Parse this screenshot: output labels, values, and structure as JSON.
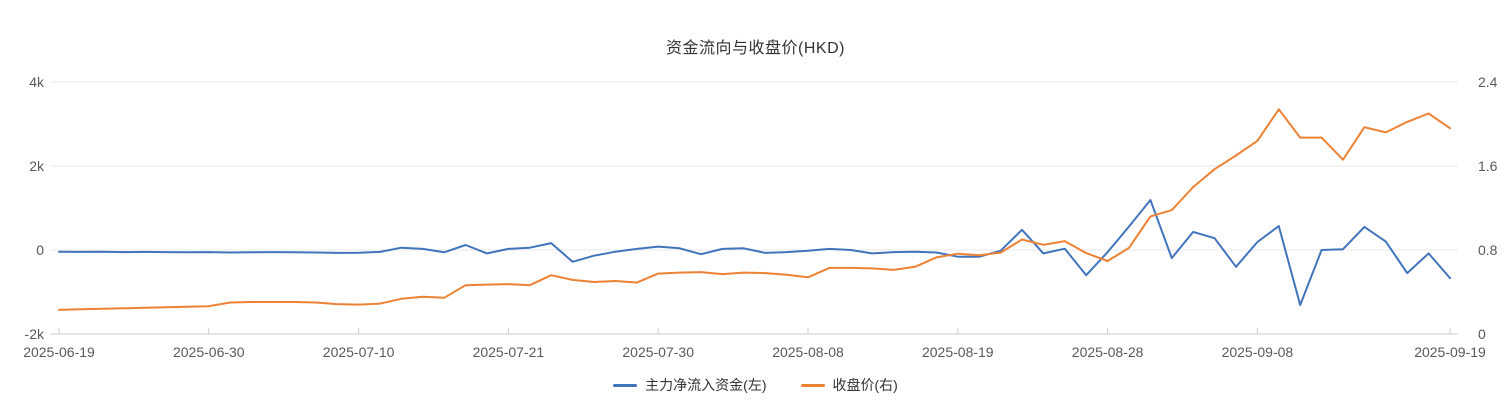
{
  "title": "资金流向与收盘价(HKD)",
  "legend": [
    {
      "label": "主力净流入资金(左)",
      "color": "#4274bd"
    },
    {
      "label": "收盘价(右)",
      "color": "#ee8234"
    }
  ],
  "colors": {
    "netflow_line": "#4274bd",
    "close_line": "#ee8234",
    "gridline": "#e8e8e8",
    "axis_line": "#cccccc",
    "axis_text": "#595959",
    "title_text": "#333333"
  },
  "chart_data": {
    "type": "line",
    "title": "资金流向与收盘价(HKD)",
    "grid": true,
    "legend_position": "bottom",
    "x": [
      "2025-06-19",
      "2025-06-20",
      "2025-06-23",
      "2025-06-24",
      "2025-06-25",
      "2025-06-26",
      "2025-06-27",
      "2025-06-30",
      "2025-07-02",
      "2025-07-03",
      "2025-07-04",
      "2025-07-07",
      "2025-07-08",
      "2025-07-09",
      "2025-07-10",
      "2025-07-11",
      "2025-07-14",
      "2025-07-15",
      "2025-07-16",
      "2025-07-17",
      "2025-07-18",
      "2025-07-21",
      "2025-07-22",
      "2025-07-23",
      "2025-07-24",
      "2025-07-25",
      "2025-07-28",
      "2025-07-29",
      "2025-07-30",
      "2025-07-31",
      "2025-08-01",
      "2025-08-04",
      "2025-08-05",
      "2025-08-06",
      "2025-08-07",
      "2025-08-08",
      "2025-08-11",
      "2025-08-12",
      "2025-08-13",
      "2025-08-14",
      "2025-08-15",
      "2025-08-18",
      "2025-08-19",
      "2025-08-20",
      "2025-08-21",
      "2025-08-22",
      "2025-08-25",
      "2025-08-26",
      "2025-08-27",
      "2025-08-28",
      "2025-08-29",
      "2025-09-01",
      "2025-09-02",
      "2025-09-03",
      "2025-09-04",
      "2025-09-05",
      "2025-09-08",
      "2025-09-09",
      "2025-09-10",
      "2025-09-11",
      "2025-09-12",
      "2025-09-15",
      "2025-09-16",
      "2025-09-17",
      "2025-09-18",
      "2025-09-19"
    ],
    "x_ticks": [
      {
        "label": "2025-06-19",
        "index": 0
      },
      {
        "label": "2025-06-30",
        "index": 7
      },
      {
        "label": "2025-07-10",
        "index": 14
      },
      {
        "label": "2025-07-21",
        "index": 21
      },
      {
        "label": "2025-07-30",
        "index": 28
      },
      {
        "label": "2025-08-08",
        "index": 35
      },
      {
        "label": "2025-08-19",
        "index": 42
      },
      {
        "label": "2025-08-28",
        "index": 49
      },
      {
        "label": "2025-09-08",
        "index": 56
      },
      {
        "label": "2025-09-19",
        "index": 65
      }
    ],
    "left_axis": {
      "min": -2000,
      "max": 4000,
      "ticks": [
        {
          "label": "4k",
          "value": 4000
        },
        {
          "label": "2k",
          "value": 2000
        },
        {
          "label": "0",
          "value": 0
        },
        {
          "label": "-2k",
          "value": -2000
        }
      ]
    },
    "right_axis": {
      "min": 0,
      "max": 2.4,
      "ticks": [
        {
          "label": "2.4",
          "value": 2.4
        },
        {
          "label": "1.6",
          "value": 1.6
        },
        {
          "label": "0.8",
          "value": 0.8
        },
        {
          "label": "0",
          "value": 0
        }
      ]
    },
    "series": [
      {
        "name": "主力净流入资金(左)",
        "axis": "left",
        "color": "#4274bd",
        "values": [
          -40,
          -45,
          -40,
          -50,
          -45,
          -50,
          -55,
          -50,
          -60,
          -55,
          -50,
          -55,
          -60,
          -70,
          -65,
          -45,
          55,
          25,
          -55,
          120,
          -80,
          25,
          55,
          165,
          -280,
          -135,
          -40,
          25,
          80,
          40,
          -100,
          25,
          40,
          -70,
          -50,
          -20,
          25,
          0,
          -80,
          -50,
          -40,
          -60,
          -160,
          -160,
          -20,
          480,
          -80,
          30,
          -600,
          -50,
          560,
          1190,
          -190,
          430,
          280,
          -400,
          190,
          570,
          -1310,
          0,
          20,
          550,
          200,
          -550,
          -80,
          -670
        ]
      },
      {
        "name": "收盘价(右)",
        "axis": "right",
        "color": "#ee8234",
        "values": [
          0.23,
          0.235,
          0.24,
          0.245,
          0.25,
          0.255,
          0.26,
          0.265,
          0.3,
          0.305,
          0.305,
          0.305,
          0.3,
          0.285,
          0.28,
          0.29,
          0.335,
          0.355,
          0.345,
          0.465,
          0.47,
          0.475,
          0.465,
          0.56,
          0.515,
          0.495,
          0.505,
          0.49,
          0.575,
          0.585,
          0.59,
          0.57,
          0.585,
          0.58,
          0.565,
          0.54,
          0.63,
          0.63,
          0.625,
          0.61,
          0.64,
          0.73,
          0.765,
          0.75,
          0.775,
          0.9,
          0.85,
          0.885,
          0.77,
          0.695,
          0.82,
          1.12,
          1.18,
          1.4,
          1.57,
          1.7,
          1.84,
          2.14,
          1.87,
          1.87,
          1.66,
          1.97,
          1.92,
          2.02,
          2.1,
          1.96
        ]
      }
    ]
  }
}
